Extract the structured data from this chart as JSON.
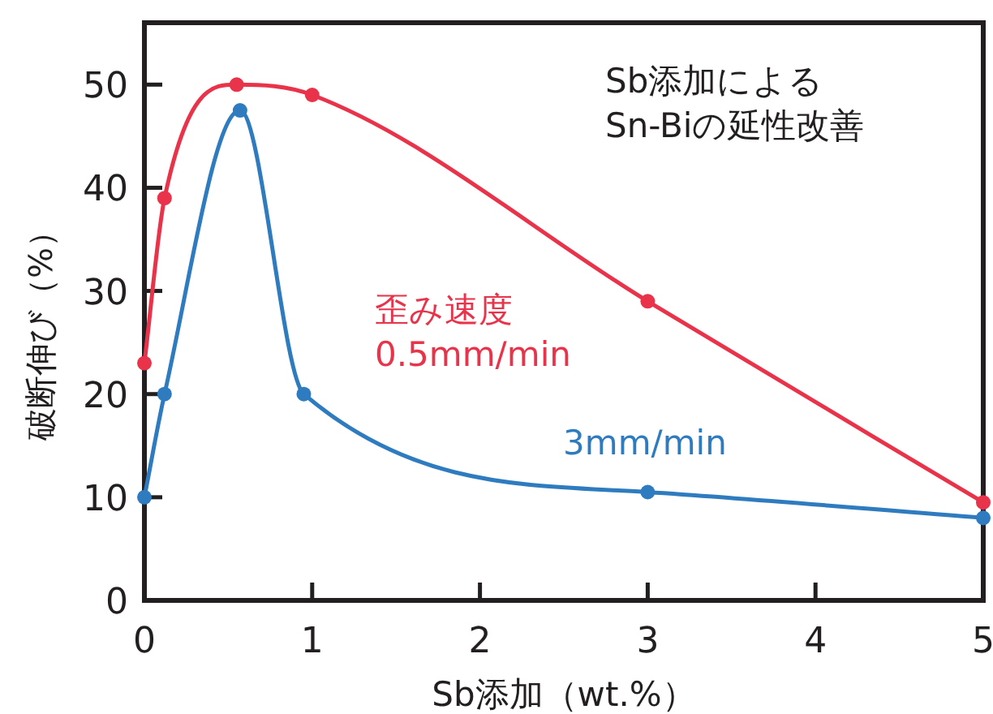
{
  "chart_data": {
    "type": "line",
    "title": "Sb添加による\nSn-Biの延性改善",
    "xlabel": "Sb添加（wt.%）",
    "ylabel": "破断伸び（%）",
    "xlim": [
      0,
      5
    ],
    "ylim": [
      0,
      56
    ],
    "xticks": [
      0,
      1,
      2,
      3,
      4,
      5
    ],
    "yticks": [
      0,
      10,
      20,
      30,
      40,
      50
    ],
    "marker": "circle",
    "grid": false,
    "legend": false,
    "series": [
      {
        "name": "歪み速度\n0.5mm/min",
        "color": "#e8334a",
        "x": [
          0,
          0.12,
          0.55,
          1,
          3,
          5
        ],
        "values": [
          23,
          39,
          50,
          49,
          29,
          9.5
        ]
      },
      {
        "name": "3mm/min",
        "color": "#2e7bbf",
        "x": [
          0,
          0.12,
          0.57,
          0.95,
          3,
          5
        ],
        "values": [
          10,
          20,
          47.5,
          20,
          10.5,
          8
        ]
      }
    ]
  }
}
